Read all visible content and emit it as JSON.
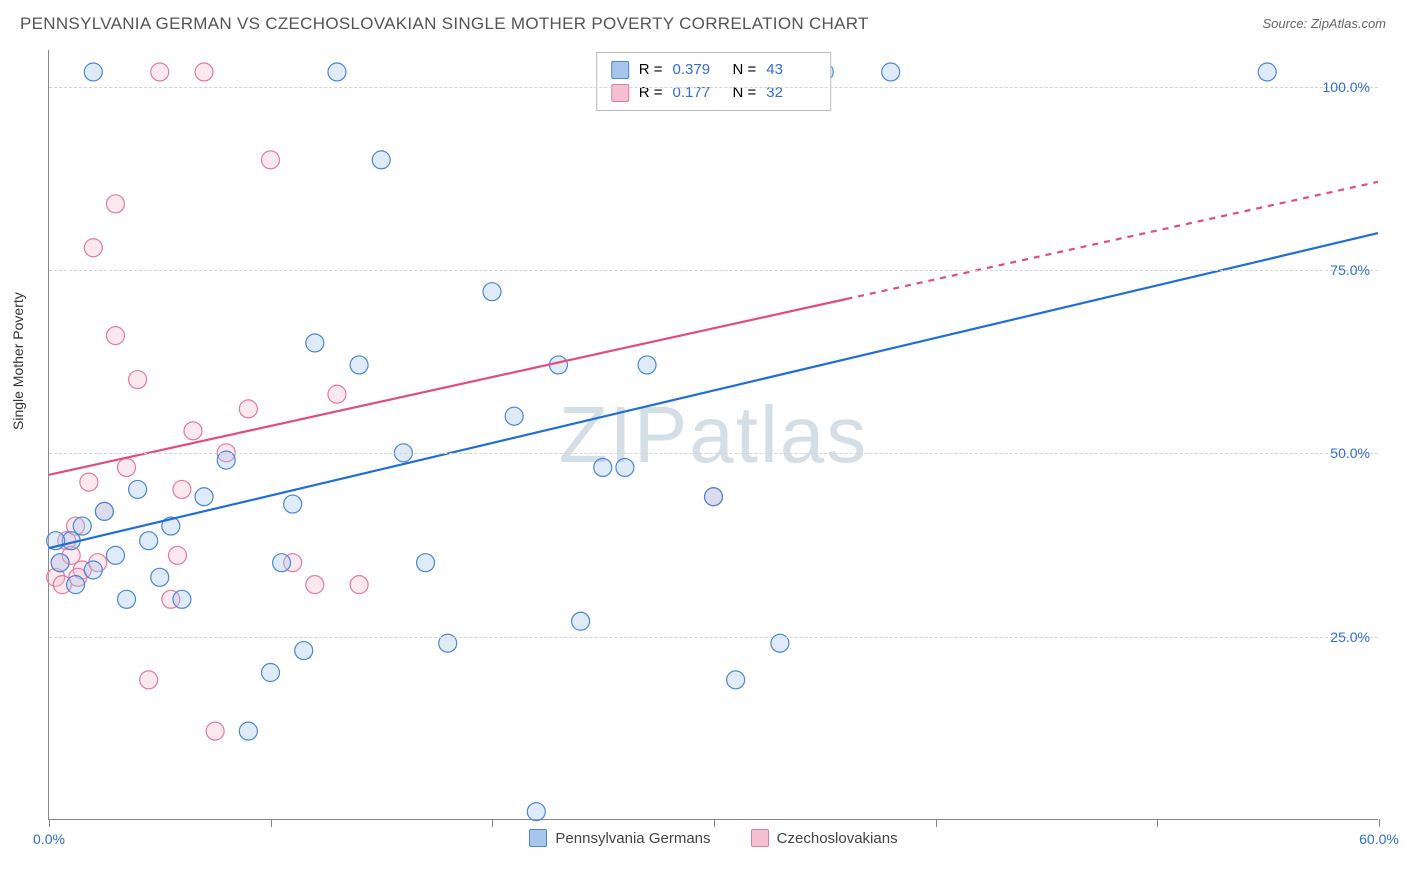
{
  "title": "PENNSYLVANIA GERMAN VS CZECHOSLOVAKIAN SINGLE MOTHER POVERTY CORRELATION CHART",
  "source": "Source: ZipAtlas.com",
  "watermark": "ZIPatlas",
  "yaxis_label": "Single Mother Poverty",
  "chart": {
    "type": "scatter",
    "xlim": [
      0,
      60
    ],
    "ylim": [
      0,
      105
    ],
    "x_ticks": [
      0,
      10,
      20,
      30,
      40,
      50,
      60
    ],
    "x_tick_labels": {
      "0": "0.0%",
      "60": "60.0%"
    },
    "y_gridlines": [
      25,
      50,
      75,
      100
    ],
    "y_tick_labels": {
      "25": "25.0%",
      "50": "50.0%",
      "75": "75.0%",
      "100": "100.0%"
    },
    "grid_color": "#d5d5d5",
    "axis_color": "#888888",
    "background_color": "#ffffff",
    "marker_radius": 9,
    "marker_stroke_width": 1.2,
    "marker_fill_opacity": 0.35,
    "regression_line_width": 2.2,
    "series": {
      "blue": {
        "label": "Pennsylvania Germans",
        "fill": "#a6c6ee",
        "stroke": "#4a86d6",
        "line_color": "#1f6fd6",
        "r_value": "0.379",
        "n_value": "43",
        "regression": {
          "x1": 0,
          "y1": 37,
          "x2": 60,
          "y2": 80,
          "dash_from_x": 60
        },
        "points": [
          [
            0.5,
            35
          ],
          [
            1,
            38
          ],
          [
            1.5,
            40
          ],
          [
            2,
            34
          ],
          [
            2.5,
            42
          ],
          [
            3,
            36
          ],
          [
            3.5,
            30
          ],
          [
            4,
            45
          ],
          [
            4.5,
            38
          ],
          [
            5,
            33
          ],
          [
            5.5,
            40
          ],
          [
            6,
            30
          ],
          [
            7,
            44
          ],
          [
            8,
            49
          ],
          [
            9,
            12
          ],
          [
            10,
            20
          ],
          [
            10.5,
            35
          ],
          [
            11,
            43
          ],
          [
            12,
            65
          ],
          [
            13,
            102
          ],
          [
            14,
            62
          ],
          [
            15,
            90
          ],
          [
            11.5,
            23
          ],
          [
            16,
            50
          ],
          [
            17,
            35
          ],
          [
            18,
            24
          ],
          [
            20,
            72
          ],
          [
            21,
            55
          ],
          [
            22,
            1
          ],
          [
            23,
            62
          ],
          [
            24,
            27
          ],
          [
            25,
            48
          ],
          [
            26,
            48
          ],
          [
            27,
            62
          ],
          [
            30,
            44
          ],
          [
            31,
            19
          ],
          [
            33,
            24
          ],
          [
            35,
            102
          ],
          [
            38,
            102
          ],
          [
            55,
            102
          ],
          [
            2,
            102
          ],
          [
            0.3,
            38
          ],
          [
            1.2,
            32
          ]
        ]
      },
      "pink": {
        "label": "Czechoslovakians",
        "fill": "#f4c0cf",
        "stroke": "#e57a9e",
        "line_color": "#e24d7c",
        "r_value": "0.177",
        "n_value": "32",
        "regression": {
          "x1": 0,
          "y1": 47,
          "x2": 60,
          "y2": 87,
          "dash_from_x": 36
        },
        "points": [
          [
            0.3,
            33
          ],
          [
            0.5,
            35
          ],
          [
            0.8,
            38
          ],
          [
            1,
            36
          ],
          [
            1.2,
            40
          ],
          [
            1.5,
            34
          ],
          [
            1.8,
            46
          ],
          [
            2,
            78
          ],
          [
            2.5,
            42
          ],
          [
            3,
            66
          ],
          [
            3,
            84
          ],
          [
            3.5,
            48
          ],
          [
            4,
            60
          ],
          [
            4.5,
            19
          ],
          [
            5,
            102
          ],
          [
            5.5,
            30
          ],
          [
            5.8,
            36
          ],
          [
            6,
            45
          ],
          [
            6.5,
            53
          ],
          [
            7,
            102
          ],
          [
            7.5,
            12
          ],
          [
            8,
            50
          ],
          [
            9,
            56
          ],
          [
            10,
            90
          ],
          [
            11,
            35
          ],
          [
            12,
            32
          ],
          [
            13,
            58
          ],
          [
            14,
            32
          ],
          [
            1.3,
            33
          ],
          [
            0.6,
            32
          ],
          [
            2.2,
            35
          ],
          [
            30,
            44
          ]
        ]
      }
    }
  },
  "stats_panel": {
    "rows": [
      {
        "swatch": "blue",
        "r_label": "R =",
        "n_label": "N ="
      },
      {
        "swatch": "pink",
        "r_label": "R =",
        "n_label": "N ="
      }
    ]
  },
  "axis_label_color": "#2f6fd6"
}
